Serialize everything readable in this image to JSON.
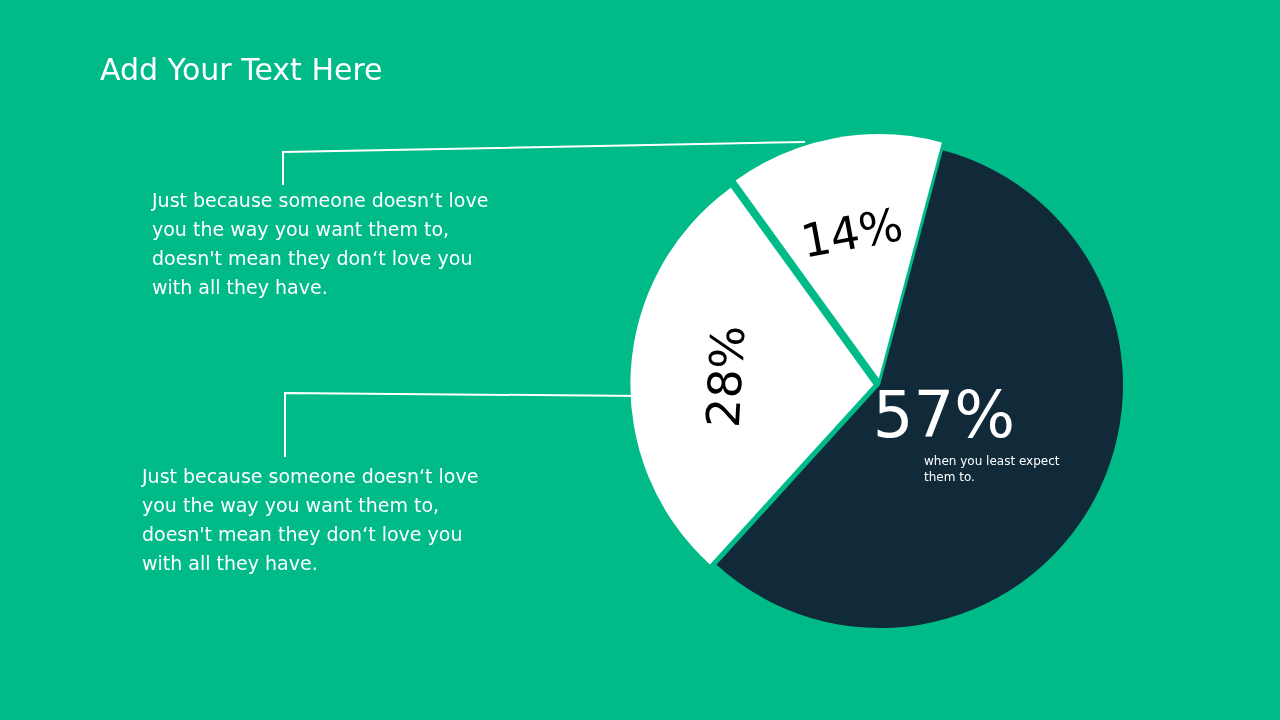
{
  "chart_data": {
    "type": "pie",
    "title": "Add Your Text Here",
    "categories": [
      null,
      null,
      null
    ],
    "values": [
      57,
      28,
      14
    ],
    "colors": [
      "#112a3a",
      "#ffffff",
      "#ffffff"
    ],
    "value_labels": [
      "57%",
      "28%",
      "14%"
    ],
    "annotations": [
      "Just because someone doesn‘t love you the way you want them to, doesn't mean they don‘t love you with all they have.",
      "Just because someone doesn‘t love you the way you want them to, doesn't mean they don‘t love you with all they have.",
      "when you least expect them to."
    ]
  }
}
